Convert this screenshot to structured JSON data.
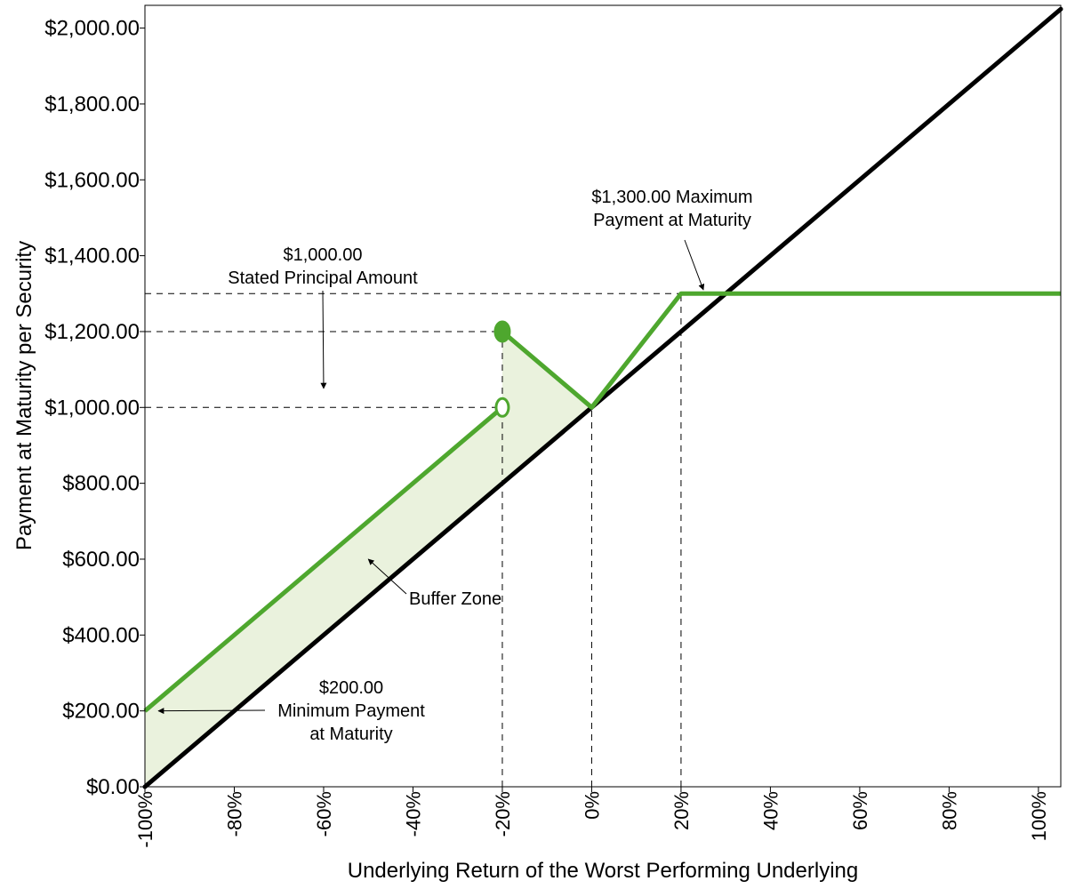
{
  "chart_data": {
    "type": "line",
    "title": "",
    "xlabel": "Underlying Return of the Worst Performing Underlying",
    "ylabel": "Payment at Maturity per Security",
    "xlim": [
      -100,
      105
    ],
    "ylim": [
      0,
      2060
    ],
    "x_ticks": [
      -100,
      -80,
      -60,
      -40,
      -20,
      0,
      20,
      40,
      60,
      80,
      100
    ],
    "x_tick_labels": [
      "-100%",
      "-80%",
      "-60%",
      "-40%",
      "-20%",
      "0%",
      "20%",
      "40%",
      "60%",
      "80%",
      "100%"
    ],
    "y_ticks": [
      0,
      200,
      400,
      600,
      800,
      1000,
      1200,
      1400,
      1600,
      1800,
      2000
    ],
    "y_tick_labels": [
      "$0.00",
      "$200.00",
      "$400.00",
      "$600.00",
      "$800.00",
      "$1,000.00",
      "$1,200.00",
      "$1,400.00",
      "$1,600.00",
      "$1,800.00",
      "$2,000.00"
    ],
    "grid": false,
    "legend": "none",
    "colors": {
      "security": "#4ea72e",
      "buffer_fill": "#eaf2dd",
      "underlying": "#000000"
    },
    "series": [
      {
        "role": "underlying",
        "points": [
          [
            -100,
            0
          ],
          [
            105,
            2050
          ]
        ]
      },
      {
        "role": "security",
        "points": [
          [
            -100,
            200
          ],
          [
            -20,
            1000
          ],
          [
            -20,
            1200
          ],
          [
            0,
            1000
          ],
          [
            20,
            1300
          ],
          [
            105,
            1300
          ]
        ]
      }
    ],
    "markers": [
      {
        "x": -20,
        "y": 1200,
        "style": "filled"
      },
      {
        "x": -20,
        "y": 1000,
        "style": "open"
      }
    ],
    "reference_lines": [
      {
        "orientation": "horizontal",
        "y": 1300,
        "x_to": 20
      },
      {
        "orientation": "horizontal",
        "y": 1200,
        "x_to": -20
      },
      {
        "orientation": "horizontal",
        "y": 1000,
        "x_to": -20
      },
      {
        "orientation": "vertical",
        "x": -20,
        "y_to": 1200
      },
      {
        "orientation": "vertical",
        "x": 0,
        "y_to": 1000
      },
      {
        "orientation": "vertical",
        "x": 20,
        "y_to": 1300
      }
    ],
    "annotations": [
      {
        "lines": [
          "$1,000.00",
          "Stated Principal Amount"
        ],
        "arrow_to": [
          -60,
          1050
        ]
      },
      {
        "lines": [
          "$1,300.00 Maximum",
          "Payment at Maturity"
        ],
        "arrow_to": [
          25,
          1310
        ]
      },
      {
        "lines": [
          "Buffer Zone"
        ],
        "arrow_to": [
          -50,
          600
        ]
      },
      {
        "lines": [
          "$200.00",
          "Minimum Payment",
          "at Maturity"
        ],
        "arrow_to": [
          -97,
          200
        ]
      }
    ]
  }
}
